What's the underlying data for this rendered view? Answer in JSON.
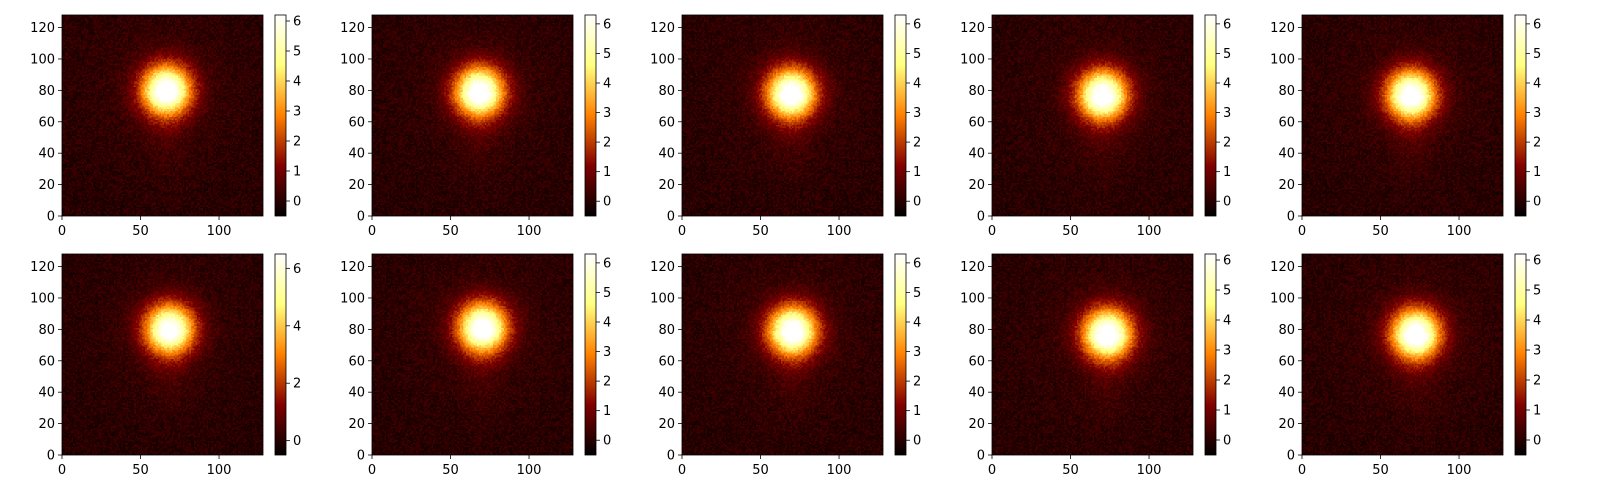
{
  "chart_data": {
    "type": "heatmap",
    "layout": {
      "rows": 2,
      "cols": 5
    },
    "colormap": "afmhot",
    "panels": [
      {
        "peak": [
          66,
          80
        ],
        "xlim": [
          0,
          128
        ],
        "ylim": [
          0,
          128
        ],
        "xticks": [
          0,
          50,
          100
        ],
        "yticks": [
          0,
          20,
          40,
          60,
          80,
          100,
          120
        ],
        "vmin": -0.5,
        "vmax": 6.2,
        "cticks": [
          0,
          1,
          2,
          3,
          4,
          5,
          6
        ]
      },
      {
        "peak": [
          68,
          79
        ],
        "xlim": [
          0,
          128
        ],
        "ylim": [
          0,
          128
        ],
        "xticks": [
          0,
          50,
          100
        ],
        "yticks": [
          0,
          20,
          40,
          60,
          80,
          100,
          120
        ],
        "vmin": -0.5,
        "vmax": 6.3,
        "cticks": [
          0,
          1,
          2,
          3,
          4,
          5,
          6
        ]
      },
      {
        "peak": [
          69,
          78
        ],
        "xlim": [
          0,
          128
        ],
        "ylim": [
          0,
          128
        ],
        "xticks": [
          0,
          50,
          100
        ],
        "yticks": [
          0,
          20,
          40,
          60,
          80,
          100,
          120
        ],
        "vmin": -0.5,
        "vmax": 6.3,
        "cticks": [
          0,
          1,
          2,
          3,
          4,
          5,
          6
        ]
      },
      {
        "peak": [
          70,
          77
        ],
        "xlim": [
          0,
          128
        ],
        "ylim": [
          0,
          128
        ],
        "xticks": [
          0,
          50,
          100
        ],
        "yticks": [
          0,
          20,
          40,
          60,
          80,
          100,
          120
        ],
        "vmin": -0.5,
        "vmax": 6.3,
        "cticks": [
          0,
          1,
          2,
          3,
          4,
          5,
          6
        ]
      },
      {
        "peak": [
          69,
          77
        ],
        "xlim": [
          0,
          128
        ],
        "ylim": [
          0,
          128
        ],
        "xticks": [
          0,
          50,
          100
        ],
        "yticks": [
          0,
          20,
          40,
          60,
          80,
          100,
          120
        ],
        "vmin": -0.5,
        "vmax": 6.3,
        "cticks": [
          0,
          1,
          2,
          3,
          4,
          5,
          6
        ]
      },
      {
        "peak": [
          68,
          80
        ],
        "xlim": [
          0,
          128
        ],
        "ylim": [
          0,
          128
        ],
        "xticks": [
          0,
          50,
          100
        ],
        "yticks": [
          0,
          20,
          40,
          60,
          80,
          100,
          120
        ],
        "vmin": -0.5,
        "vmax": 6.5,
        "cticks": [
          0,
          2,
          4,
          6
        ]
      },
      {
        "peak": [
          70,
          81
        ],
        "xlim": [
          0,
          128
        ],
        "ylim": [
          0,
          128
        ],
        "xticks": [
          0,
          50,
          100
        ],
        "yticks": [
          0,
          20,
          40,
          60,
          80,
          100,
          120
        ],
        "vmin": -0.5,
        "vmax": 6.3,
        "cticks": [
          0,
          1,
          2,
          3,
          4,
          5,
          6
        ]
      },
      {
        "peak": [
          70,
          79
        ],
        "xlim": [
          0,
          128
        ],
        "ylim": [
          0,
          128
        ],
        "xticks": [
          0,
          50,
          100
        ],
        "yticks": [
          0,
          20,
          40,
          60,
          80,
          100,
          120
        ],
        "vmin": -0.5,
        "vmax": 6.3,
        "cticks": [
          0,
          1,
          2,
          3,
          4,
          5,
          6
        ]
      },
      {
        "peak": [
          73,
          77
        ],
        "xlim": [
          0,
          128
        ],
        "ylim": [
          0,
          128
        ],
        "xticks": [
          0,
          50,
          100
        ],
        "yticks": [
          0,
          20,
          40,
          60,
          80,
          100,
          120
        ],
        "vmin": -0.5,
        "vmax": 6.2,
        "cticks": [
          0,
          1,
          2,
          3,
          4,
          5,
          6
        ]
      },
      {
        "peak": [
          72,
          77
        ],
        "xlim": [
          0,
          128
        ],
        "ylim": [
          0,
          128
        ],
        "xticks": [
          0,
          50,
          100
        ],
        "yticks": [
          0,
          20,
          40,
          60,
          80,
          100,
          120
        ],
        "vmin": -0.5,
        "vmax": 6.2,
        "cticks": [
          0,
          1,
          2,
          3,
          4,
          5,
          6
        ]
      }
    ]
  }
}
